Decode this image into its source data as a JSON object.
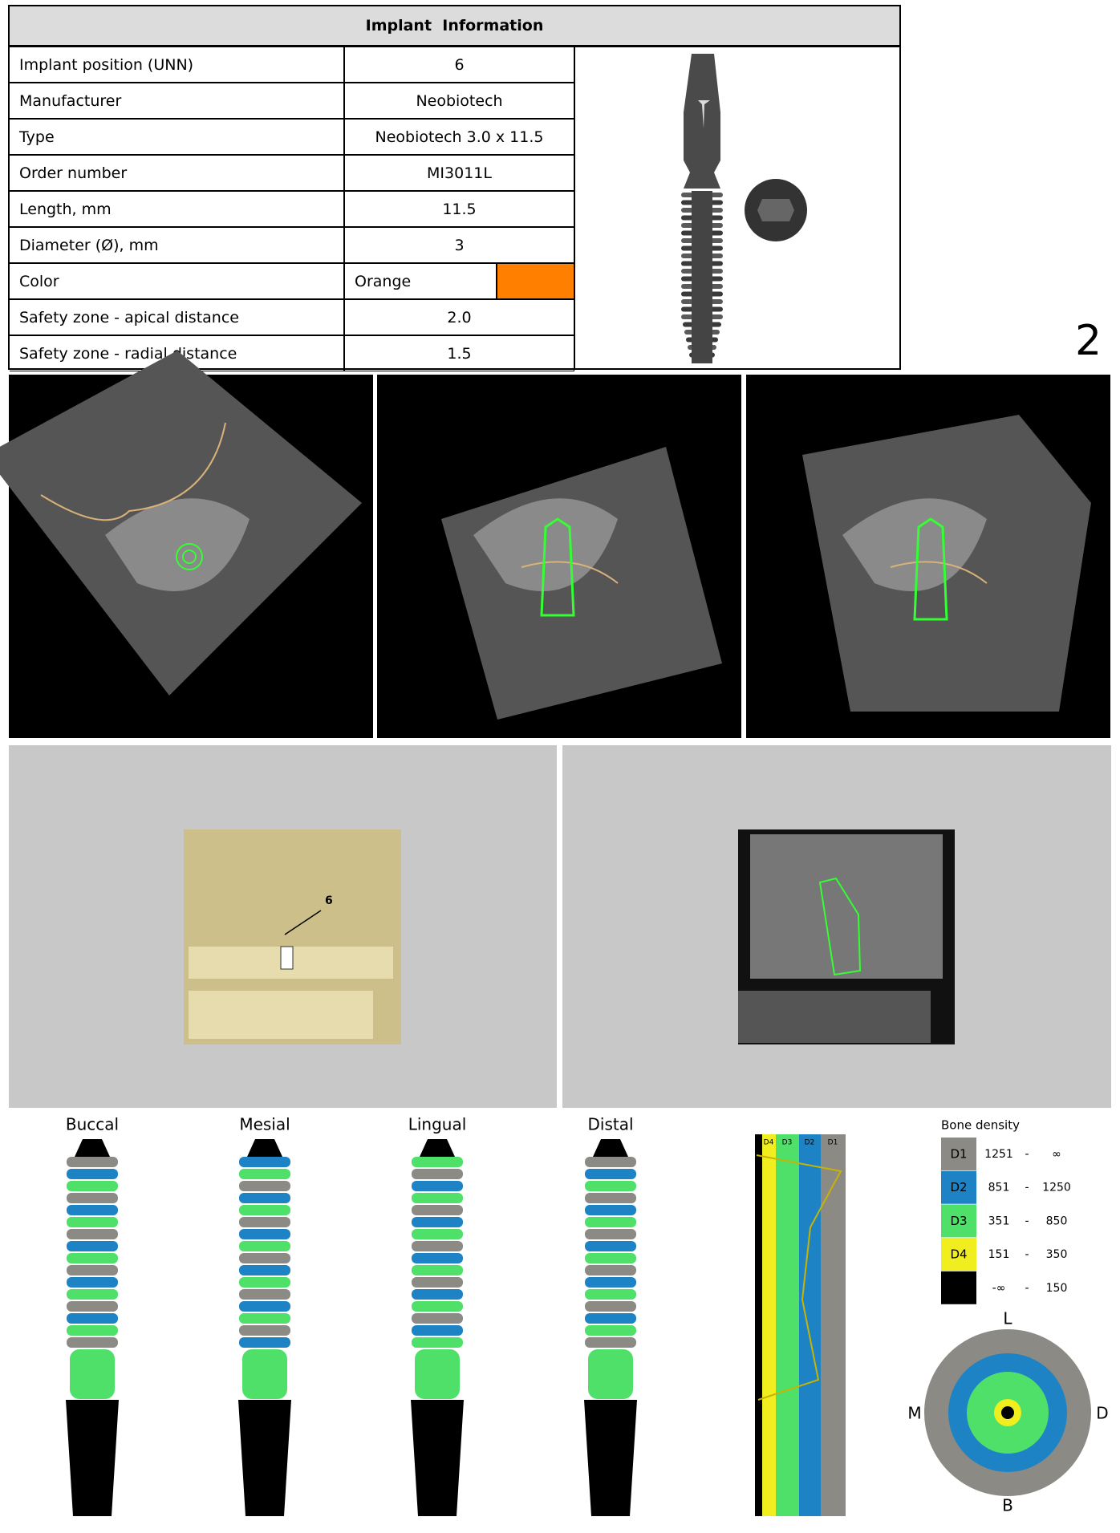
{
  "header": {
    "title": "Implant  Information"
  },
  "table": {
    "rows": [
      [
        "Implant position (UNN)",
        "6"
      ],
      [
        "Manufacturer",
        "Neobiotech"
      ],
      [
        "Type",
        "Neobiotech 3.0 x 11.5"
      ],
      [
        "Order number",
        "MI3011L"
      ],
      [
        "Length, mm",
        "11.5"
      ],
      [
        "Diameter (Ø), mm",
        "3"
      ],
      [
        "Color",
        "Orange"
      ],
      [
        "Safety zone - apical distance",
        "2.0"
      ],
      [
        "Safety zone - radial distance",
        "1.5"
      ]
    ],
    "color_swatch": "#ff8000"
  },
  "page_number": "2",
  "view_3d": {
    "label": "6"
  },
  "implant_views": [
    "Buccal",
    "Mesial",
    "Lingual",
    "Distal"
  ],
  "density_strip": {
    "labels": [
      "D4",
      "D3",
      "D2",
      "D1"
    ]
  },
  "bone_density": {
    "title": "Bone density",
    "separator": "-",
    "rows": [
      {
        "class": "D1",
        "from": "1251",
        "to": "∞",
        "color": "#8b8a84"
      },
      {
        "class": "D2",
        "from": "851",
        "to": "1250",
        "color": "#1e83c4"
      },
      {
        "class": "D3",
        "from": "351",
        "to": "850",
        "color": "#4fe06a"
      },
      {
        "class": "D4",
        "from": "151",
        "to": "350",
        "color": "#f0ee1e"
      },
      {
        "from": "-∞",
        "to": "150",
        "color": "#000000"
      }
    ]
  },
  "orientation": {
    "top": "L",
    "left": "M",
    "right": "D",
    "bottom": "B"
  }
}
